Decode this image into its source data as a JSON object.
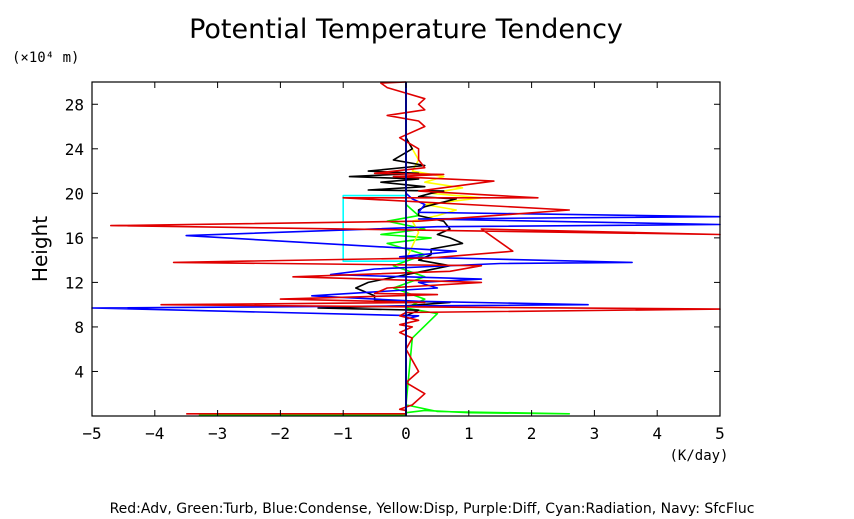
{
  "chart_data": {
    "type": "line",
    "title": "Potential Temperature Tendency",
    "xlabel": "",
    "x_unit_label": "(K/day)",
    "ylabel": "Height",
    "y_unit_label": "(×10⁴ m)",
    "xlim": [
      -5,
      5
    ],
    "ylim": [
      0,
      30
    ],
    "x_ticks": [
      -5,
      -4,
      -3,
      -2,
      -1,
      0,
      1,
      2,
      3,
      4,
      5
    ],
    "y_ticks": [
      4,
      8,
      12,
      16,
      20,
      24,
      28
    ],
    "x_tick_labels": [
      "−5",
      "−4",
      "−3",
      "−2",
      "−1",
      "0",
      "1",
      "2",
      "3",
      "4",
      "5"
    ],
    "y_tick_labels": [
      "4",
      "8",
      "12",
      "16",
      "20",
      "24",
      "28"
    ],
    "grid": false,
    "legend_caption": "Red:Adv, Green:Turb, Blue:Condense, Yellow:Disp, Purple:Diff, Cyan:Radiation, Navy: SfcFluc",
    "series": [
      {
        "color": "#000080",
        "x": [
          0.0,
          0.0,
          0.0
        ],
        "y": [
          0.0,
          15.0,
          30.0
        ]
      },
      {
        "color": "#00ffff",
        "x": [
          0.0,
          -1.0,
          -1.0,
          0.0,
          0.0
        ],
        "y": [
          13.9,
          13.9,
          19.8,
          19.8,
          30.0
        ]
      },
      {
        "color": "#00ff00",
        "x": [
          -3.3,
          0.0,
          0.0,
          0.3,
          1.0,
          2.6,
          0.5,
          0.0,
          0.1,
          0.5,
          0.0,
          0.3,
          -0.2,
          0.3,
          -0.2,
          0.3,
          -0.3,
          0.4,
          -0.4,
          0.3,
          -0.3,
          0.2,
          0.0,
          0.0
        ],
        "y": [
          0.1,
          0.1,
          0.3,
          0.5,
          0.3,
          0.2,
          0.4,
          1.0,
          7.0,
          9.2,
          9.7,
          10.5,
          11.5,
          12.5,
          13.5,
          14.5,
          15.5,
          16.0,
          16.3,
          16.8,
          17.5,
          18.0,
          19.0,
          30.0
        ]
      },
      {
        "color": "#ffff00",
        "x": [
          0.0,
          0.0,
          0.2,
          0.1,
          0.5,
          0.8,
          0.3,
          1.2,
          0.4,
          0.9,
          0.3,
          0.6,
          0.1,
          0.2,
          0.0,
          0.0
        ],
        "y": [
          0.0,
          14.0,
          16.5,
          17.5,
          18.0,
          18.5,
          19.0,
          19.6,
          20.0,
          20.5,
          21.0,
          21.5,
          22.0,
          23.0,
          25.0,
          30.0
        ]
      },
      {
        "color": "#000000",
        "x": [
          0.0,
          0.0,
          0.2,
          -1.4,
          0.0,
          0.7,
          -0.5,
          -0.5,
          -0.8,
          -0.6,
          0.7,
          0.2,
          0.4,
          0.4,
          0.9,
          0.7,
          0.5,
          0.7,
          0.6,
          0.2,
          0.2,
          0.3,
          0.8,
          0.2,
          0.4,
          0.6,
          -0.6,
          0.3,
          -0.4,
          0.2,
          -0.9,
          0.2,
          -0.6,
          0.3,
          -0.2,
          0.1,
          0.0,
          0.0
        ],
        "y": [
          0.0,
          9.0,
          9.5,
          9.7,
          9.9,
          10.2,
          10.4,
          10.8,
          11.5,
          12.0,
          13.5,
          14.0,
          14.5,
          15.0,
          15.5,
          16.0,
          16.3,
          16.8,
          17.5,
          18.0,
          18.5,
          18.8,
          19.5,
          19.7,
          20.0,
          20.2,
          20.3,
          20.6,
          21.0,
          21.3,
          21.5,
          21.8,
          22.0,
          22.5,
          23.0,
          24.0,
          25.0,
          30.0
        ]
      },
      {
        "color": "#0000ff",
        "x": [
          0.0,
          0.0,
          0.2,
          -5.0,
          0.4,
          2.9,
          0.2,
          -1.5,
          0.5,
          0.2,
          1.2,
          -1.2,
          -0.5,
          1.5,
          3.6,
          -0.1,
          0.8,
          -3.5,
          0.5,
          5.0,
          0.2,
          5.0,
          0.2,
          0.3,
          0.1,
          0.0,
          0.0
        ],
        "y": [
          0.0,
          8.7,
          9.0,
          9.7,
          9.9,
          10.0,
          10.3,
          10.8,
          11.5,
          12.0,
          12.3,
          12.7,
          13.2,
          13.7,
          13.8,
          14.3,
          14.8,
          16.2,
          17.0,
          17.2,
          17.7,
          17.9,
          18.3,
          19.0,
          19.5,
          20.0,
          30.0
        ]
      },
      {
        "color": "#e00000",
        "x": [
          -3.5,
          0.0,
          0.0,
          -0.1,
          0.1,
          0.3,
          0.0,
          0.2,
          0.1,
          0.0,
          0.1,
          -0.1,
          0.1,
          -0.1,
          0.2,
          -0.1,
          0.0,
          5.0,
          0.2,
          -3.9,
          0.3,
          -2.0,
          0.5,
          -0.5,
          -0.3,
          1.2,
          -1.8,
          0.7,
          1.2,
          -3.7,
          0.4,
          1.7,
          1.2,
          5.0,
          -4.7,
          0.2,
          2.6,
          -1.0,
          2.1,
          0.2,
          1.4,
          -0.2,
          0.6,
          -0.5,
          0.3,
          0.2,
          0.2,
          -0.1,
          0.3,
          0.2,
          -0.3,
          0.3,
          0.2,
          0.3,
          0.0,
          -0.3,
          -0.4,
          0.0
        ],
        "y": [
          0.2,
          0.2,
          0.5,
          0.6,
          1.0,
          2.0,
          3.0,
          4.0,
          5.0,
          6.0,
          7.0,
          7.5,
          8.0,
          8.2,
          8.6,
          9.0,
          9.3,
          9.6,
          9.8,
          10.0,
          10.2,
          10.5,
          10.9,
          11.0,
          11.5,
          12.0,
          12.5,
          13.0,
          13.5,
          13.8,
          14.2,
          14.8,
          16.8,
          16.3,
          17.1,
          17.5,
          18.5,
          19.6,
          19.6,
          20.2,
          21.1,
          21.5,
          21.7,
          21.8,
          22.3,
          23.0,
          24.0,
          25.0,
          26.0,
          26.5,
          27.0,
          27.5,
          28.0,
          28.5,
          29.0,
          29.5,
          29.9,
          30.0
        ]
      }
    ]
  }
}
